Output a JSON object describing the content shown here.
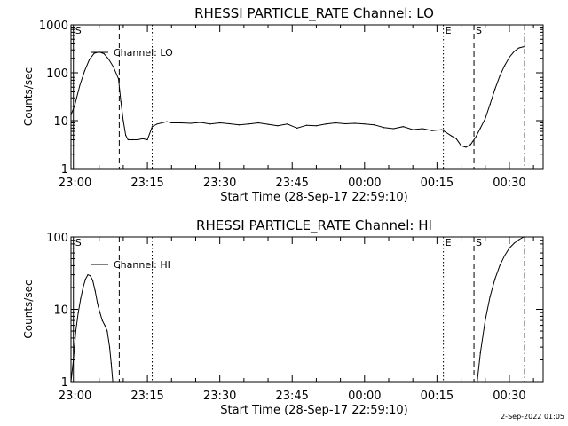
{
  "footer": "2-Sep-2022 01:05",
  "chart_data": [
    {
      "type": "line",
      "title": "RHESSI PARTICLE_RATE Channel: LO",
      "xlabel": "Start Time (28-Sep-17 22:59:10)",
      "ylabel": "Counts/sec",
      "yscale": "log",
      "ylim": [
        1,
        1000
      ],
      "xlim": [
        "22:59:10",
        "00:37:00"
      ],
      "x_ticks": [
        "23:00",
        "23:15",
        "23:30",
        "23:45",
        "00:00",
        "00:15",
        "00:30"
      ],
      "y_ticks": [
        "1",
        "10",
        "100",
        "1000"
      ],
      "legend": "top-left",
      "series": [
        {
          "name": "Channel: LO",
          "x": [
            "22:59:10",
            "23:00:00",
            "23:01:00",
            "23:02:00",
            "23:03:00",
            "23:04:00",
            "23:05:00",
            "23:06:00",
            "23:07:00",
            "23:08:00",
            "23:09:00",
            "23:09:30",
            "23:10:00",
            "23:10:30",
            "23:11:00",
            "23:12:00",
            "23:13:00",
            "23:14:00",
            "23:15:00",
            "23:16:00",
            "23:17:00",
            "23:18:00",
            "23:19:00",
            "23:20:00",
            "23:22:00",
            "23:24:00",
            "23:26:00",
            "23:28:00",
            "23:30:00",
            "23:32:00",
            "23:34:00",
            "23:36:00",
            "23:38:00",
            "23:40:00",
            "23:42:00",
            "23:44:00",
            "23:46:00",
            "23:48:00",
            "23:50:00",
            "23:52:00",
            "23:54:00",
            "23:56:00",
            "23:58:00",
            "00:00:00",
            "00:02:00",
            "00:04:00",
            "00:06:00",
            "00:08:00",
            "00:10:00",
            "00:12:00",
            "00:14:00",
            "00:16:00",
            "00:18:00",
            "00:19:00",
            "00:20:00",
            "00:21:00",
            "00:22:00",
            "00:23:00",
            "00:24:00",
            "00:25:00",
            "00:26:00",
            "00:27:00",
            "00:28:00",
            "00:29:00",
            "00:30:00",
            "00:31:00",
            "00:32:00",
            "00:33:00"
          ],
          "y": [
            13,
            22,
            55,
            110,
            190,
            255,
            270,
            250,
            190,
            130,
            75,
            25,
            10,
            5,
            4,
            4,
            4,
            4.2,
            4,
            7.5,
            8.5,
            9,
            9.5,
            9,
            9,
            8.8,
            9.2,
            8.5,
            9,
            8.6,
            8.2,
            8.5,
            9,
            8.4,
            7.8,
            8.5,
            7,
            8,
            7.8,
            8.5,
            9,
            8.6,
            8.8,
            8.5,
            8.2,
            7.2,
            6.8,
            7.5,
            6.5,
            6.8,
            6.2,
            6.5,
            4.8,
            4.2,
            3,
            2.8,
            3.2,
            4.5,
            7,
            11,
            22,
            45,
            85,
            140,
            210,
            280,
            330,
            350
          ]
        }
      ],
      "markers": [
        {
          "time": "22:59:40",
          "label": "S",
          "style": "solid"
        },
        {
          "time": "23:09:10",
          "label": "",
          "style": "dashed"
        },
        {
          "time": "23:16:00",
          "label": "",
          "style": "dotted"
        },
        {
          "time": "00:16:20",
          "label": "E",
          "style": "dotted"
        },
        {
          "time": "00:22:40",
          "label": "S",
          "style": "dashed"
        },
        {
          "time": "00:33:10",
          "label": "",
          "style": "dashdot"
        }
      ]
    },
    {
      "type": "line",
      "title": "RHESSI PARTICLE_RATE Channel: HI",
      "xlabel": "Start Time (28-Sep-17 22:59:10)",
      "ylabel": "Counts/sec",
      "yscale": "log",
      "ylim": [
        1,
        100
      ],
      "xlim": [
        "22:59:10",
        "00:37:00"
      ],
      "x_ticks": [
        "23:00",
        "23:15",
        "23:30",
        "23:45",
        "00:00",
        "00:15",
        "00:30"
      ],
      "y_ticks": [
        "1",
        "10",
        "100"
      ],
      "legend": "top-left",
      "series": [
        {
          "name": "Channel: HI",
          "segments": [
            {
              "x": [
                "22:59:10",
                "22:59:40",
                "23:00:10",
                "23:00:40",
                "23:01:10",
                "23:01:40",
                "23:02:10",
                "23:02:40",
                "23:03:10",
                "23:03:40",
                "23:04:10",
                "23:04:40",
                "23:05:10",
                "23:05:40",
                "23:06:10",
                "23:06:40",
                "23:07:10",
                "23:07:30",
                "23:07:50"
              ],
              "y": [
                1,
                2,
                5,
                9,
                14,
                20,
                26,
                30,
                29,
                25,
                18,
                12,
                9,
                7,
                6,
                5,
                3,
                1.8,
                1
              ]
            },
            {
              "x": [
                "00:23:20",
                "00:24:00",
                "00:25:00",
                "00:26:00",
                "00:27:00",
                "00:28:00",
                "00:29:00",
                "00:30:00",
                "00:31:00",
                "00:32:00",
                "00:33:00"
              ],
              "y": [
                1,
                2.5,
                7,
                15,
                26,
                40,
                55,
                70,
                82,
                92,
                100
              ]
            }
          ]
        }
      ],
      "markers": [
        {
          "time": "22:59:40",
          "label": "S",
          "style": "solid"
        },
        {
          "time": "23:09:10",
          "label": "",
          "style": "dashed"
        },
        {
          "time": "23:16:00",
          "label": "",
          "style": "dotted"
        },
        {
          "time": "00:16:20",
          "label": "E",
          "style": "dotted"
        },
        {
          "time": "00:22:40",
          "label": "S",
          "style": "dashed"
        },
        {
          "time": "00:33:10",
          "label": "",
          "style": "dashdot"
        }
      ]
    }
  ]
}
